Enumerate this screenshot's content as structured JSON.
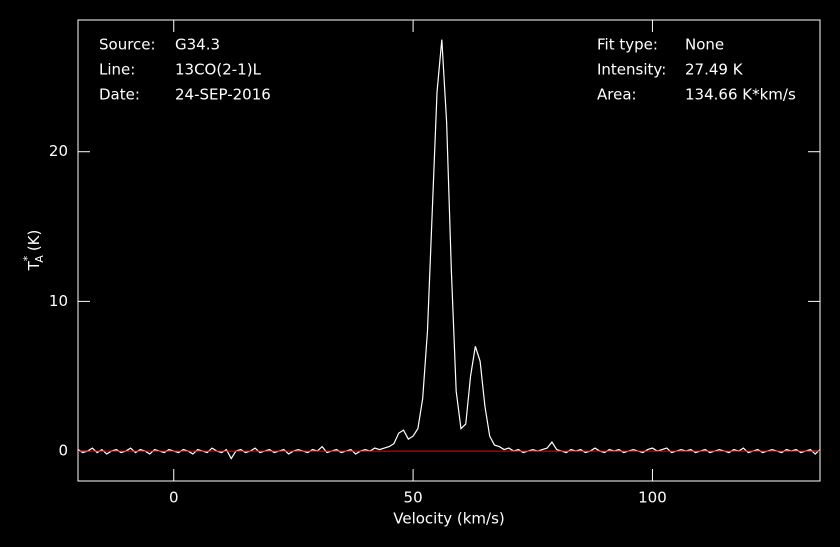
{
  "chart_data": {
    "type": "line",
    "xlabel": "Velocity (km/s)",
    "ylabel": {
      "base": "T",
      "sup": "*",
      "sub": "A",
      "unit": "(K)"
    },
    "info_left": [
      {
        "label": "Source:",
        "value": "G34.3"
      },
      {
        "label": "Line:",
        "value": "13CO(2-1)L"
      },
      {
        "label": "Date:",
        "value": "24-SEP-2016"
      }
    ],
    "info_right": [
      {
        "label": "Fit type:",
        "value": "None"
      },
      {
        "label": "Intensity:",
        "value": "27.49 K"
      },
      {
        "label": "Area:",
        "value": "134.66 K*km/s"
      }
    ],
    "xlim": [
      -20,
      135
    ],
    "ylim": [
      -2,
      28.8
    ],
    "xticks": [
      0,
      50,
      100
    ],
    "yticks": [
      0,
      10,
      20
    ],
    "baseline": 0,
    "baseline_color": "#ff0000",
    "x": [
      -20,
      -19,
      -18,
      -17,
      -16,
      -15,
      -14,
      -13,
      -12,
      -11,
      -10,
      -9,
      -8,
      -7,
      -6,
      -5,
      -4,
      -3,
      -2,
      -1,
      0,
      1,
      2,
      3,
      4,
      5,
      6,
      7,
      8,
      9,
      10,
      11,
      12,
      13,
      14,
      15,
      16,
      17,
      18,
      19,
      20,
      21,
      22,
      23,
      24,
      25,
      26,
      27,
      28,
      29,
      30,
      31,
      32,
      33,
      34,
      35,
      36,
      37,
      38,
      39,
      40,
      41,
      42,
      43,
      44,
      45,
      46,
      47,
      48,
      49,
      50,
      51,
      52,
      53,
      54,
      55,
      56,
      57,
      58,
      59,
      60,
      61,
      62,
      63,
      64,
      65,
      66,
      67,
      68,
      69,
      70,
      71,
      72,
      73,
      74,
      75,
      76,
      77,
      78,
      79,
      80,
      81,
      82,
      83,
      84,
      85,
      86,
      87,
      88,
      89,
      90,
      91,
      92,
      93,
      94,
      95,
      96,
      97,
      98,
      99,
      100,
      101,
      102,
      103,
      104,
      105,
      106,
      107,
      108,
      109,
      110,
      111,
      112,
      113,
      114,
      115,
      116,
      117,
      118,
      119,
      120,
      121,
      122,
      123,
      124,
      125,
      126,
      127,
      128,
      129,
      130,
      131,
      132,
      133,
      134,
      135
    ],
    "series": [
      {
        "color": "#ffffff",
        "values": [
          0.1,
          -0.1,
          0.0,
          0.2,
          -0.1,
          0.1,
          -0.2,
          0.0,
          0.1,
          -0.1,
          0.0,
          0.2,
          -0.1,
          0.1,
          0.0,
          -0.2,
          0.1,
          0.0,
          -0.1,
          0.1,
          0.0,
          -0.1,
          0.1,
          0.0,
          -0.2,
          0.1,
          0.0,
          -0.1,
          0.2,
          0.0,
          -0.1,
          0.1,
          -0.5,
          0.0,
          0.1,
          -0.1,
          0.0,
          0.2,
          -0.1,
          0.0,
          0.1,
          -0.1,
          0.0,
          0.1,
          -0.2,
          0.0,
          0.1,
          0.0,
          -0.1,
          0.1,
          0.0,
          0.3,
          -0.1,
          0.0,
          0.1,
          -0.1,
          0.0,
          0.1,
          -0.2,
          0.0,
          0.1,
          0.0,
          0.2,
          0.1,
          0.2,
          0.3,
          0.5,
          1.2,
          1.4,
          0.8,
          1.0,
          1.5,
          3.5,
          8.0,
          16.0,
          24.0,
          27.49,
          22.0,
          12.0,
          4.0,
          1.5,
          1.8,
          5.0,
          7.0,
          6.0,
          3.0,
          1.0,
          0.4,
          0.3,
          0.1,
          0.2,
          0.0,
          0.1,
          -0.1,
          0.0,
          0.1,
          0.0,
          0.1,
          0.2,
          0.6,
          0.1,
          0.0,
          -0.1,
          0.1,
          0.0,
          0.1,
          -0.1,
          0.0,
          0.2,
          0.0,
          -0.1,
          0.1,
          0.0,
          0.1,
          -0.1,
          0.0,
          0.1,
          0.0,
          -0.1,
          0.1,
          0.2,
          0.0,
          0.1,
          0.2,
          -0.1,
          0.0,
          0.1,
          0.0,
          0.1,
          -0.1,
          0.0,
          0.1,
          -0.1,
          0.0,
          0.1,
          0.0,
          -0.1,
          0.1,
          0.0,
          0.2,
          -0.1,
          0.0,
          0.1,
          -0.1,
          0.0,
          0.1,
          0.0,
          -0.1,
          0.1,
          0.0,
          0.1,
          -0.1,
          0.0,
          0.1,
          -0.2,
          0.1
        ]
      }
    ]
  }
}
